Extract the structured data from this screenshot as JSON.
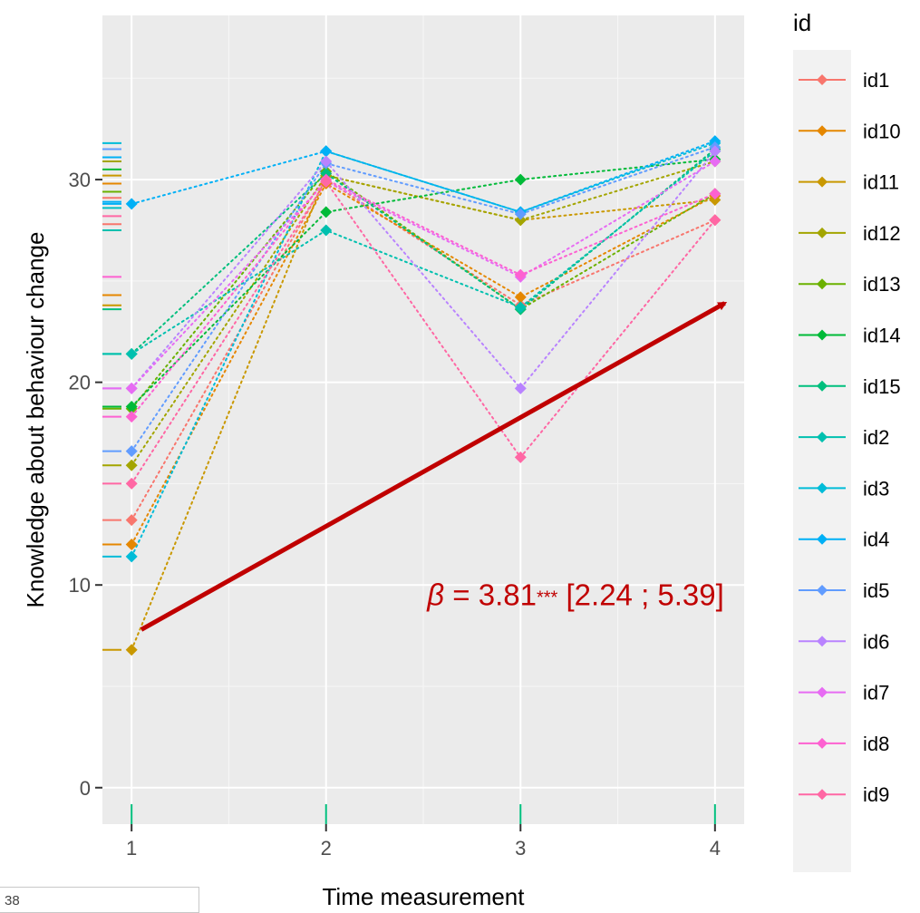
{
  "page_number": "38",
  "chart_data": {
    "type": "line",
    "xlabel": "Time measurement",
    "ylabel": "Knowledge about behaviour change",
    "x": [
      1,
      2,
      3,
      4
    ],
    "x_ticks": [
      "1",
      "2",
      "3",
      "4"
    ],
    "y_ticks": [
      "0",
      "10",
      "20",
      "30"
    ],
    "xlim": [
      0.85,
      4.15
    ],
    "ylim": [
      -1.8,
      38.1
    ],
    "legend_title": "id",
    "legend_position": "right",
    "panel_background": "#ebebeb",
    "line_style": "dotted",
    "series": [
      {
        "name": "id1",
        "color": "#F8766D",
        "values": [
          13.2,
          30.0,
          23.8,
          28.0
        ]
      },
      {
        "name": "id10",
        "color": "#E58700",
        "values": [
          12.0,
          29.8,
          24.2,
          29.2
        ]
      },
      {
        "name": "id11",
        "color": "#C99800",
        "values": [
          6.8,
          30.2,
          28.0,
          29.0
        ]
      },
      {
        "name": "id12",
        "color": "#A3A500",
        "values": [
          15.9,
          30.2,
          28.0,
          30.9
        ]
      },
      {
        "name": "id13",
        "color": "#6BB100",
        "values": [
          18.7,
          30.4,
          23.6,
          29.3
        ]
      },
      {
        "name": "id14",
        "color": "#00BA38",
        "values": [
          18.8,
          28.4,
          30.0,
          31.0
        ]
      },
      {
        "name": "id15",
        "color": "#00BF7D",
        "values": [
          21.4,
          30.3,
          23.6,
          31.5
        ]
      },
      {
        "name": "id2",
        "color": "#00C0AF",
        "values": [
          21.4,
          27.5,
          23.7,
          31.4
        ]
      },
      {
        "name": "id3",
        "color": "#00BCD8",
        "values": [
          11.4,
          31.4,
          28.4,
          31.8
        ]
      },
      {
        "name": "id4",
        "color": "#00B0F6",
        "values": [
          28.8,
          31.4,
          28.4,
          31.9
        ]
      },
      {
        "name": "id5",
        "color": "#619CFF",
        "values": [
          16.6,
          30.8,
          28.3,
          31.6
        ]
      },
      {
        "name": "id6",
        "color": "#B983FF",
        "values": [
          19.7,
          30.9,
          19.7,
          31.4
        ]
      },
      {
        "name": "id7",
        "color": "#E76BF3",
        "values": [
          19.7,
          29.9,
          25.2,
          30.9
        ]
      },
      {
        "name": "id8",
        "color": "#FD61D1",
        "values": [
          18.3,
          30.0,
          25.3,
          29.3
        ]
      },
      {
        "name": "id9",
        "color": "#FF67A4",
        "values": [
          15.0,
          29.9,
          16.3,
          28.0
        ]
      }
    ],
    "rug_y": [
      31.8,
      31.5,
      31.1,
      30.9,
      30.5,
      30.2,
      29.8,
      29.4,
      29.1,
      28.9,
      28.6,
      28.2,
      27.8,
      27.5,
      25.2,
      24.3,
      23.8,
      23.6
    ],
    "trend_arrow": {
      "from": [
        1.05,
        7.8
      ],
      "to": [
        4.05,
        23.9
      ],
      "color": "#c00000"
    },
    "annotation": {
      "beta_symbol": "β",
      "equals": " = 3.81",
      "stars": "***",
      "ci": " [2.24 ; 5.39]",
      "color": "#c00000",
      "at": [
        2.52,
        9.0
      ]
    }
  }
}
